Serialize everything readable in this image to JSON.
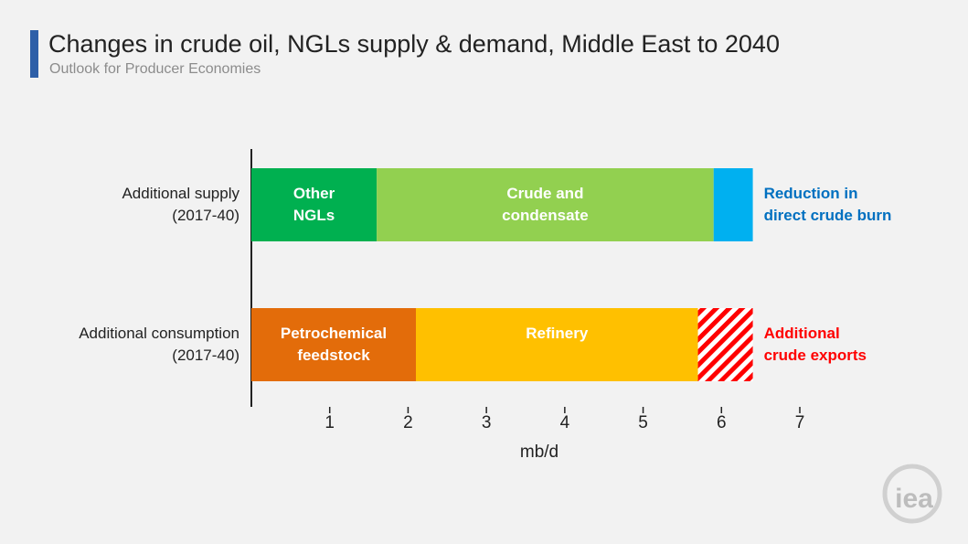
{
  "chart_data": {
    "type": "stacked-bar-horizontal",
    "title": "Changes in crude oil, NGLs supply & demand, Middle East to 2040",
    "subtitle": "Outlook for Producer Economies",
    "xlabel": "mb/d",
    "categories": [
      "Additional supply\n(2017-40)",
      "Additional consumption\n(2017-40)"
    ],
    "series": [
      {
        "name": "Other\nNGLs",
        "color": "#00b050",
        "label": "inside",
        "label_color": "#ffffff",
        "values": [
          1.6,
          null
        ]
      },
      {
        "name": "Crude and\ncondensate",
        "color": "#92d050",
        "label": "inside",
        "label_color": "#ffffff",
        "values": [
          4.3,
          null
        ]
      },
      {
        "name": "Reduction in\ndirect crude burn",
        "color": "#00b0f0",
        "label": "outside",
        "label_color": "#0070c0",
        "values": [
          0.5,
          null
        ]
      },
      {
        "name": "Petrochemical\nfeedstock",
        "color": "#e36c0a",
        "label": "inside",
        "label_color": "#ffffff",
        "values": [
          null,
          2.1
        ]
      },
      {
        "name": "Refinery",
        "color": "#ffc000",
        "label": "inside",
        "label_color": "#ffffff",
        "values": [
          null,
          3.6
        ]
      },
      {
        "name": "Additional\ncrude exports",
        "color": "#ff0000",
        "hatch": true,
        "label": "outside",
        "label_color": "#ff0000",
        "values": [
          null,
          0.7
        ]
      }
    ],
    "xlim": [
      0,
      7
    ],
    "xticks": [
      1,
      2,
      3,
      4,
      5,
      6,
      7
    ],
    "logo": "iea"
  }
}
